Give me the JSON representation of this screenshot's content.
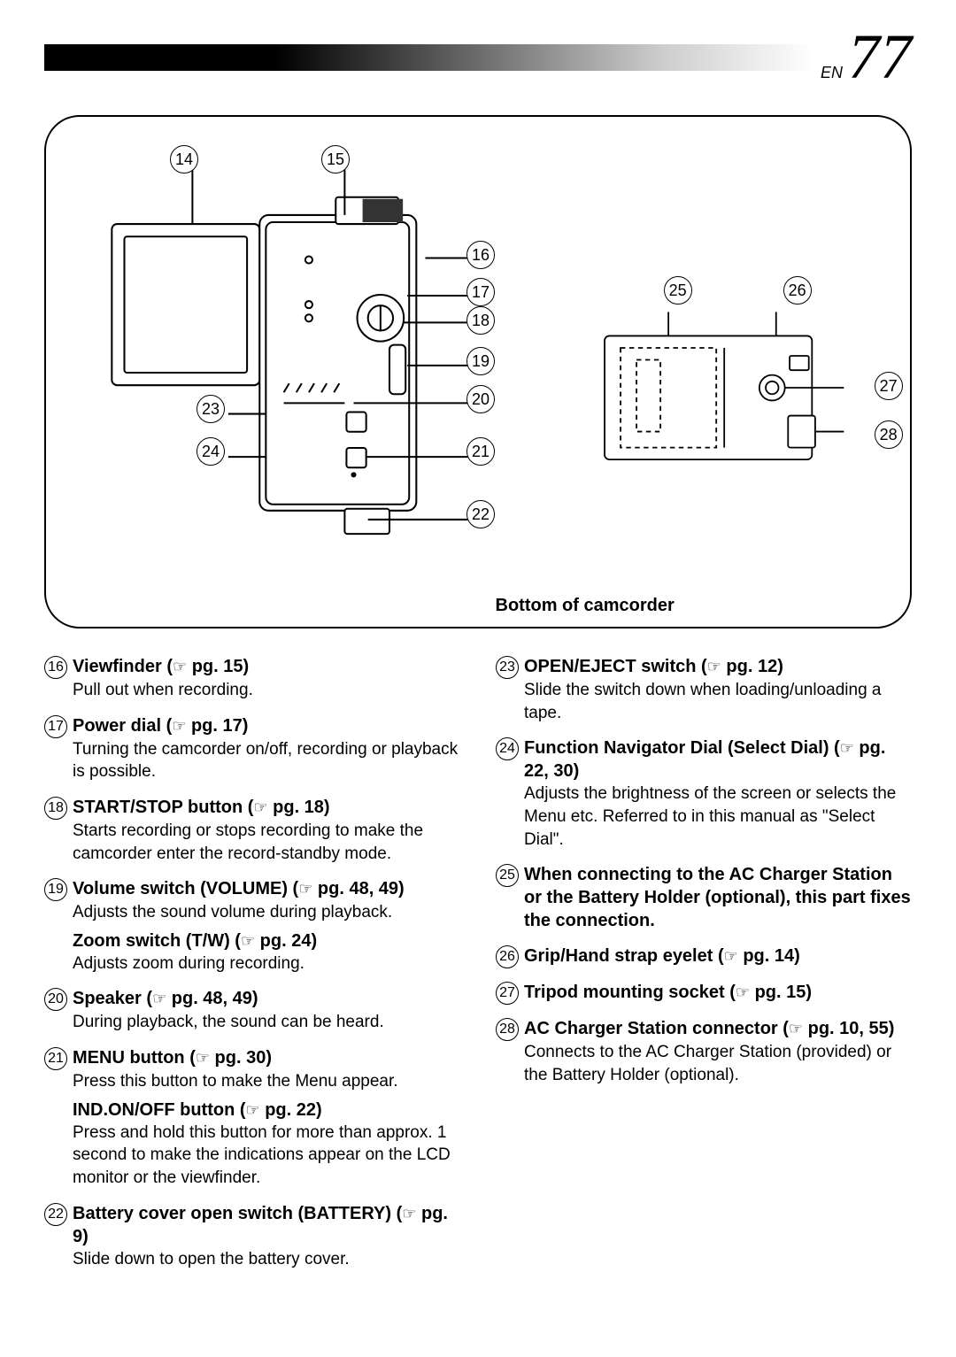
{
  "header": {
    "prefix": "EN",
    "page_number": "77"
  },
  "diagram": {
    "callouts_side": [
      "14",
      "15",
      "16",
      "17",
      "18",
      "19",
      "20",
      "21",
      "22",
      "23",
      "24"
    ],
    "callouts_bottom": [
      "25",
      "26",
      "27",
      "28"
    ],
    "bottom_label": "Bottom of camcorder"
  },
  "left_items": [
    {
      "num": "16",
      "title_1": "Viewfinder (",
      "title_2": " pg. 15)",
      "desc": "Pull out when recording."
    },
    {
      "num": "17",
      "title_1": "Power dial (",
      "title_2": " pg. 17)",
      "desc": "Turning the camcorder on/off, recording or playback is possible."
    },
    {
      "num": "18",
      "title_1": "START/STOP button (",
      "title_2": " pg. 18)",
      "desc": "Starts recording or stops recording to make the camcorder enter the record-standby mode."
    },
    {
      "num": "19",
      "title_1": "Volume switch (VOLUME) (",
      "title_2": " pg. 48, 49)",
      "desc": "Adjusts the sound volume during playback.",
      "nested": [
        {
          "title_1": "Zoom switch (T/W) (",
          "title_2": " pg. 24)",
          "desc": "Adjusts zoom during recording."
        }
      ]
    },
    {
      "num": "20",
      "title_1": "Speaker (",
      "title_2": " pg. 48, 49)",
      "desc": "During playback, the sound can be heard."
    },
    {
      "num": "21",
      "title_1": "MENU button (",
      "title_2": " pg. 30)",
      "desc": "Press this button to make the Menu appear.",
      "nested": [
        {
          "title_1": "IND.ON/OFF button (",
          "title_2": " pg. 22)",
          "desc": "Press and hold this button for more than approx. 1 second to make the indications appear on the LCD monitor or the viewfinder."
        }
      ]
    },
    {
      "num": "22",
      "title_1": "Battery cover open switch (BATTERY) (",
      "title_2": " pg. 9)",
      "desc": "Slide down to open the battery cover."
    }
  ],
  "right_items": [
    {
      "num": "23",
      "title_1": "OPEN/EJECT switch (",
      "title_2": " pg. 12)",
      "desc": "Slide the switch down when loading/unloading a tape."
    },
    {
      "num": "24",
      "title_1": "Function Navigator Dial (Select Dial) (",
      "title_2": " pg. 22, 30)",
      "desc": "Adjusts the brightness of the screen or selects the Menu etc. Referred to in this manual as \"Select Dial\"."
    },
    {
      "num": "25",
      "title_plain": "When connecting to the AC Charger Station or the Battery Holder (optional), this part fixes the connection."
    },
    {
      "num": "26",
      "title_1": "Grip/Hand strap eyelet (",
      "title_2": " pg. 14)"
    },
    {
      "num": "27",
      "title_1": "Tripod mounting socket (",
      "title_2": " pg. 15)"
    },
    {
      "num": "28",
      "title_1": "AC Charger Station connector (",
      "title_2": " pg. 10, 55)",
      "desc": "Connects to the AC Charger Station (provided) or the Battery Holder (optional)."
    }
  ]
}
